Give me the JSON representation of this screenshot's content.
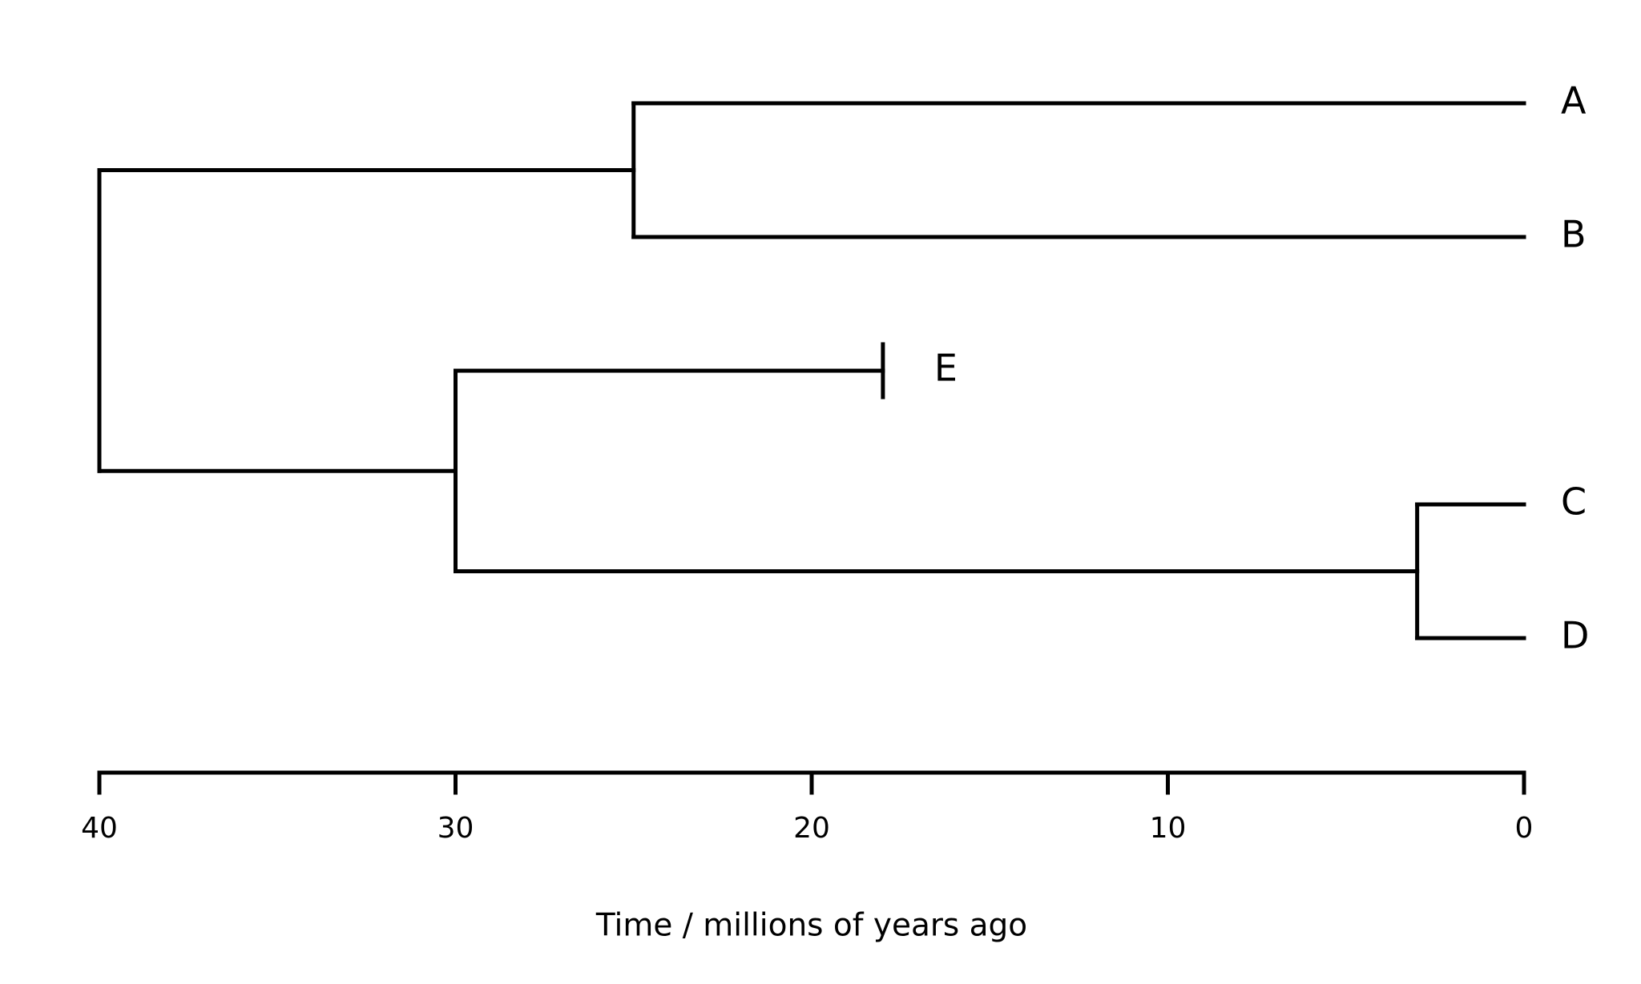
{
  "chart_data": {
    "type": "dendrogram",
    "xlabel": "Time / millions of years ago",
    "xlim": [
      40,
      0
    ],
    "xticks": [
      40,
      30,
      20,
      10,
      0
    ],
    "color": "#000000",
    "tree": {
      "time": 40,
      "children": [
        {
          "time": 25,
          "children": [
            {
              "label": "A",
              "time": 0
            },
            {
              "label": "B",
              "time": 0
            }
          ]
        },
        {
          "time": 30,
          "children": [
            {
              "label": "E",
              "time": 18,
              "extinct": true
            },
            {
              "time": 3,
              "children": [
                {
                  "label": "C",
                  "time": 0
                },
                {
                  "label": "D",
                  "time": 0
                }
              ]
            }
          ]
        }
      ]
    }
  }
}
